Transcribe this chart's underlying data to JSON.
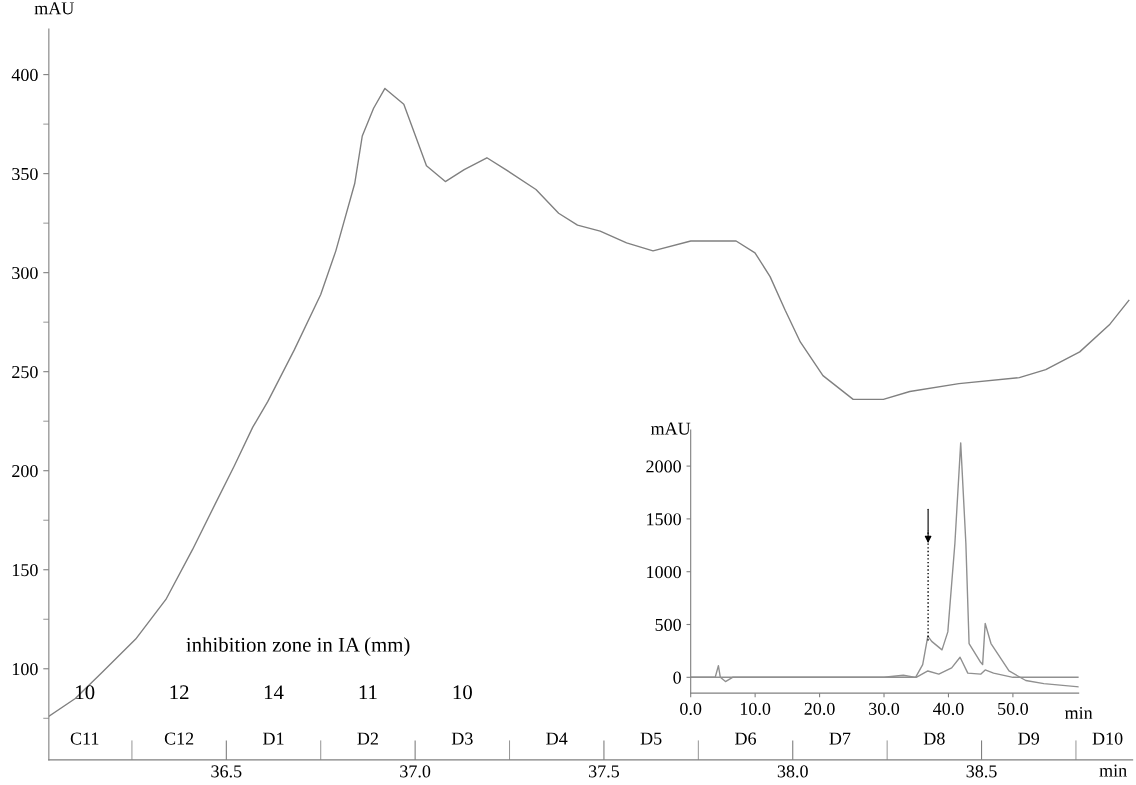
{
  "chart_data": [
    {
      "type": "line",
      "ylabel": "mAU",
      "xlabel": "min",
      "series": [
        {
          "color": "#808080",
          "x": [
            36.03,
            36.1,
            36.17,
            36.26,
            36.34,
            36.41,
            36.47,
            36.52,
            36.57,
            36.61,
            36.68,
            36.75,
            36.79,
            36.84,
            36.86,
            36.89,
            36.92,
            36.97,
            37.03,
            37.08,
            37.13,
            37.19,
            37.24,
            37.32,
            37.38,
            37.43,
            37.49,
            37.56,
            37.63,
            37.73,
            37.85,
            37.9,
            37.94,
            37.98,
            38.02,
            38.08,
            38.16,
            38.24,
            38.31,
            38.44,
            38.6,
            38.67,
            38.76,
            38.84,
            38.89
          ],
          "values": [
            76,
            85,
            98,
            115,
            135,
            160,
            183,
            202,
            222,
            235,
            261,
            289,
            311,
            345,
            369,
            383,
            393,
            385,
            354,
            346,
            352,
            358,
            352,
            342,
            330,
            324,
            321,
            315,
            311,
            316,
            316,
            310,
            298,
            281,
            265,
            248,
            236,
            236,
            240,
            244,
            247,
            251,
            260,
            274,
            286
          ]
        }
      ],
      "xlim": [
        36.03,
        38.9
      ],
      "xticks": [
        {
          "value": 36.5,
          "label": "36.5"
        },
        {
          "value": 37.0,
          "label": "37.0"
        },
        {
          "value": 37.5,
          "label": "37.5"
        },
        {
          "value": 38.0,
          "label": "38.0"
        },
        {
          "value": 38.5,
          "label": "38.5"
        }
      ],
      "ylim": [
        54,
        423
      ],
      "yticks": [
        100,
        150,
        200,
        250,
        300,
        350,
        400
      ],
      "annotations": [
        "inhibition zone in IA (mm)",
        "10",
        "12",
        "14",
        "11",
        "10",
        "C11",
        "C12",
        "D1",
        "D2",
        "D3",
        "D4",
        "D5",
        "D6",
        "D7",
        "D8",
        "D9",
        "D10"
      ],
      "grid": false,
      "legend": false
    },
    {
      "type": "line",
      "ylabel": "mAU",
      "xlabel": "min",
      "series": [
        {
          "color": "#909090",
          "x": [
            0,
            3.8,
            4.3,
            4.6,
            5.4,
            6.5,
            10,
            20,
            30,
            33,
            34.9,
            36.0,
            36.8,
            37.4,
            38.2,
            39.0,
            39.9,
            41.0,
            41.9,
            42.7,
            43.2,
            44.9,
            45.3,
            45.7,
            46.6,
            49.4,
            52,
            54.8,
            60.2
          ],
          "values": [
            0,
            0,
            110,
            0,
            -40,
            0,
            0,
            0,
            0,
            20,
            0,
            120,
            390,
            340,
            300,
            260,
            430,
            1270,
            2220,
            1270,
            320,
            150,
            120,
            510,
            320,
            60,
            -30,
            -60,
            -90
          ]
        },
        {
          "color": "#909090",
          "x": [
            0,
            10,
            20,
            30,
            35,
            36.8,
            38.5,
            40.5,
            41.8,
            43,
            45,
            45.7,
            47,
            50,
            55,
            60.2
          ],
          "values": [
            0,
            0,
            0,
            0,
            0,
            60,
            30,
            90,
            190,
            40,
            30,
            70,
            40,
            0,
            0,
            0
          ]
        }
      ],
      "xlim": [
        0,
        60.2
      ],
      "xticks": [
        {
          "value": 0,
          "label": "0.0"
        },
        {
          "value": 10,
          "label": "10.0"
        },
        {
          "value": 20,
          "label": "20.0"
        },
        {
          "value": 30,
          "label": "30.0"
        },
        {
          "value": 40,
          "label": "40.0"
        },
        {
          "value": 50,
          "label": "50.0"
        }
      ],
      "ylim": [
        -150,
        2340
      ],
      "yticks": [
        0,
        500,
        1000,
        1500,
        2000
      ],
      "grid": false,
      "legend": false
    }
  ]
}
